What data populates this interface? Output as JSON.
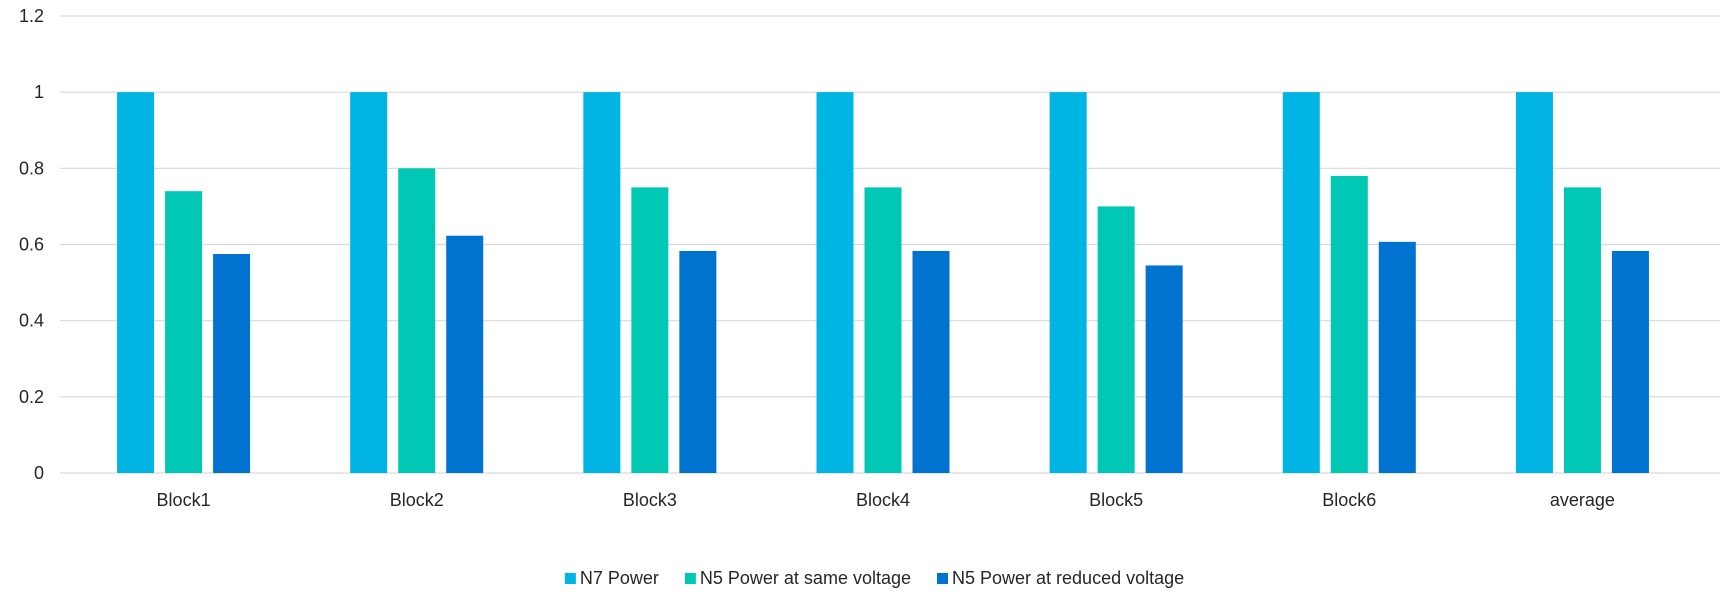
{
  "chart_data": {
    "type": "bar",
    "title": "",
    "xlabel": "",
    "ylabel": "",
    "categories": [
      "Block1",
      "Block2",
      "Block3",
      "Block4",
      "Block5",
      "Block6",
      "average"
    ],
    "series": [
      {
        "name": "N7 Power",
        "color": "#00b4e3",
        "values": [
          1,
          1,
          1,
          1,
          1,
          1,
          1
        ]
      },
      {
        "name": "N5 Power at same voltage",
        "color": "#00c8b4",
        "values": [
          0.74,
          0.8,
          0.75,
          0.75,
          0.7,
          0.78,
          0.75
        ]
      },
      {
        "name": "N5 Power at reduced voltage",
        "color": "#0072d0",
        "values": [
          0.575,
          0.623,
          0.583,
          0.583,
          0.545,
          0.607,
          0.583
        ]
      }
    ],
    "ylim": [
      0,
      1.2
    ],
    "yticks": [
      0,
      0.2,
      0.4,
      0.6,
      0.8,
      1,
      1.2
    ],
    "ytick_labels": [
      "0",
      "0.2",
      "0.4",
      "0.6",
      "0.8",
      "1",
      "1.2"
    ],
    "grid": true,
    "legend_position": "bottom"
  }
}
